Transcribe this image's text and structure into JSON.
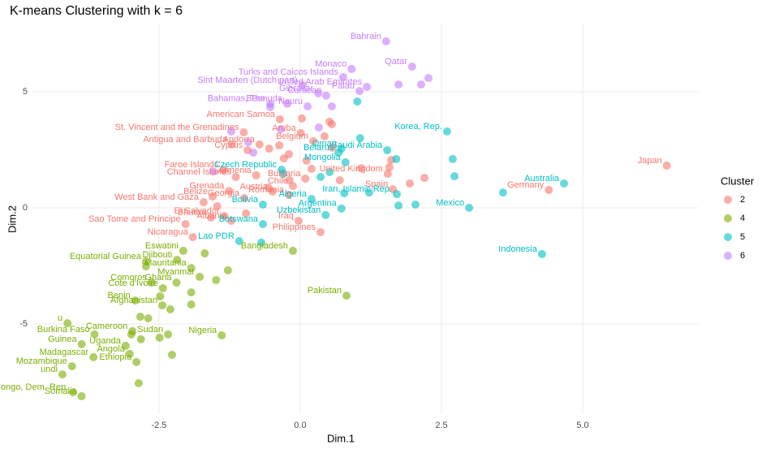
{
  "chart_data": {
    "type": "scatter",
    "title": "K-means Clustering with k = 6",
    "x_label": "Dim.1",
    "y_label": "Dim.2",
    "legend_title": "Cluster",
    "legend_position": "right",
    "grid": true,
    "xlim": [
      -4.74,
      7.04
    ],
    "ylim": [
      -8.88,
      7.9
    ],
    "xticks": [
      -2.5,
      {
        "value": 0,
        "label": "0.0"
      },
      2.5,
      {
        "value": 5,
        "label": "5.0"
      }
    ],
    "yticks": [
      -5,
      0,
      5
    ],
    "series": [
      {
        "name": "2",
        "color": "#F8766D",
        "labels": [
          "Japan",
          "Germany",
          "United Kingdom",
          "Spain",
          null,
          null,
          "Philippines",
          "Iraq",
          "Nicaragua",
          "Sao Tome and Principe",
          "Bhutan",
          "El Salvador",
          "Albania",
          "West Bank and Gaza",
          "Belize",
          "Grenada",
          "Georgia",
          "Austria",
          "Romania",
          "Chile",
          "Bulgaria",
          "Armenia",
          "Channel Islands",
          "Faroe Islands",
          "Cyprus",
          "Belgium",
          "Aruba",
          "Andorra",
          "Antigua and Barbuda",
          "St. Vincent and the Grenadines",
          "American Samoa",
          null,
          null,
          null,
          null,
          null,
          null,
          null,
          null,
          null,
          null,
          null,
          null,
          null,
          null,
          null,
          null,
          null,
          null,
          null
        ],
        "x": [
          6.49,
          4.4,
          1.55,
          1.64,
          1.94,
          2.2,
          0.36,
          -0.03,
          -1.9,
          -2.03,
          -1.58,
          -1.34,
          -1.22,
          -1.71,
          -1.55,
          -1.26,
          -0.99,
          -0.49,
          -0.2,
          -0.13,
          0.09,
          -0.78,
          -1.14,
          -1.36,
          -0.93,
          0.23,
          0.01,
          -0.72,
          -1.21,
          -1.0,
          -0.36,
          0.03,
          0.52,
          0.56,
          0.43,
          0.57,
          0.11,
          -0.29,
          -0.55,
          -0.2,
          0.7,
          1.08,
          1.58,
          1.61,
          -0.37,
          0.2,
          -0.56,
          -0.19,
          -1.47,
          -0.96
        ],
        "y": [
          1.82,
          0.77,
          1.47,
          0.8,
          1.05,
          1.29,
          -1.05,
          -0.56,
          -1.26,
          -0.7,
          -0.42,
          -0.35,
          -0.56,
          0.24,
          0.49,
          0.73,
          0.42,
          0.7,
          0.56,
          0.94,
          1.26,
          1.4,
          1.33,
          1.64,
          2.48,
          2.87,
          3.22,
          2.73,
          2.73,
          3.25,
          3.81,
          3.85,
          3.71,
          3.6,
          3.08,
          2.59,
          2.03,
          2.13,
          2.55,
          2.31,
          1.19,
          1.71,
          1.75,
          2.06,
          2.69,
          1.68,
          0.87,
          1.19,
          0.07,
          -0.24
        ]
      },
      {
        "name": "4",
        "color": "#7CAE00",
        "labels": [
          "Pakistan",
          "Bangladesh",
          null,
          "Eswatini",
          "Djibouti",
          "Equatorial Guinea",
          null,
          "Comoros",
          "Mauritania",
          "Myanmar",
          "Ghana",
          "Cote d'Ivoire",
          "Benin",
          "Afghanistan",
          "Cameroon",
          "Burkina Faso",
          "Guinea",
          "Uganda",
          "Sudan",
          "Nigeria",
          "Angola",
          "Madagascar",
          "Ethiopia",
          "Mozambique",
          "undi",
          "Congo, Dem. Rep.",
          "Somalia",
          "u",
          null,
          null,
          null,
          null,
          null,
          null,
          null,
          null,
          null,
          null,
          null,
          null,
          null
        ],
        "x": [
          0.82,
          -0.13,
          -1.28,
          -2.07,
          -2.18,
          -2.73,
          -2.73,
          -2.63,
          -1.93,
          -1.78,
          -2.19,
          -2.43,
          -2.92,
          -2.44,
          -2.97,
          -3.64,
          -3.87,
          -3.09,
          -2.34,
          -1.39,
          -3.02,
          -3.66,
          -2.9,
          -4.04,
          -4.21,
          -4.02,
          -3.87,
          -4.12,
          -2.86,
          -2.27,
          -1.93,
          -1.49,
          -1.69,
          -2.48,
          -1.93,
          -2.83,
          -2.69,
          -2.82,
          -2.3,
          -2.49,
          -2.99
        ],
        "y": [
          -3.78,
          -1.85,
          -2.69,
          -1.85,
          -2.24,
          -2.31,
          -2.52,
          -3.22,
          -2.59,
          -2.97,
          -3.22,
          -3.46,
          -3.99,
          -4.2,
          -5.31,
          -5.45,
          -5.87,
          -5.94,
          -5.45,
          -5.49,
          -6.29,
          -6.43,
          -6.64,
          -6.82,
          -7.17,
          -7.94,
          -8.11,
          -4.97,
          -7.55,
          -6.33,
          -4.16,
          -3.11,
          -1.96,
          -3.81,
          -3.64,
          -4.69,
          -4.76,
          -5.66,
          -4.37,
          -5.59,
          -5.45
        ]
      },
      {
        "name": "5",
        "color": "#00BFC4",
        "labels": [
          "Korea, Rep.",
          "Australia",
          null,
          "Mexico",
          "Indonesia",
          "Iran, Islamic Rep.",
          "Saudi Arabia",
          null,
          null,
          null,
          "Argentina",
          "Uzbekistan",
          "Algeria",
          "Oman",
          "Belarus",
          "Mongolia",
          "Czech Republic",
          "Bolivia",
          "Botswana",
          "Lao PDR",
          null,
          null,
          null,
          null,
          null,
          null,
          null,
          null,
          null,
          null
        ],
        "x": [
          2.6,
          4.67,
          3.59,
          2.99,
          4.28,
          1.71,
          1.54,
          1.7,
          2.7,
          2.73,
          0.73,
          0.45,
          0.2,
          0.73,
          0.68,
          0.8,
          -0.33,
          -0.66,
          -0.66,
          -1.08,
          -0.69,
          1.01,
          1.06,
          0.78,
          1.22,
          1.74,
          2.04,
          0.52,
          0.36,
          -0.3
        ],
        "y": [
          3.29,
          1.05,
          0.66,
          0.0,
          -1.99,
          0.59,
          2.48,
          2.1,
          2.1,
          1.36,
          -0.03,
          -0.31,
          0.38,
          2.55,
          2.38,
          1.96,
          1.64,
          0.14,
          -0.7,
          -1.43,
          -1.5,
          4.58,
          3.0,
          0.63,
          0.66,
          0.1,
          0.14,
          1.54,
          1.33,
          1.47
        ]
      },
      {
        "name": "6",
        "color": "#C77CFF",
        "labels": [
          "Bahrain",
          "Turks and Caicos Islands",
          "Monaco",
          "Qatar",
          null,
          null,
          null,
          "Sint Maarten (Dutch part)",
          "United Arab Emirates",
          "Gibraltar",
          "Curacao",
          "Palau",
          "Bermuda",
          "Nauru",
          "Bahamas, The",
          null,
          null,
          null,
          null,
          null,
          null,
          null,
          null
        ],
        "x": [
          1.52,
          0.76,
          0.91,
          1.98,
          2.27,
          2.14,
          1.74,
          0.04,
          1.18,
          0.32,
          0.46,
          1.05,
          -0.23,
          0.13,
          -0.53,
          -0.53,
          0.56,
          -0.34,
          0.33,
          -1.22,
          -0.92,
          -0.83,
          -1.54
        ],
        "y": [
          7.17,
          5.63,
          5.98,
          6.08,
          5.59,
          5.31,
          5.31,
          5.28,
          5.21,
          4.93,
          4.83,
          5.03,
          4.48,
          4.37,
          4.48,
          4.34,
          4.37,
          3.39,
          3.46,
          3.29,
          2.83,
          2.38,
          1.57
        ]
      }
    ]
  }
}
